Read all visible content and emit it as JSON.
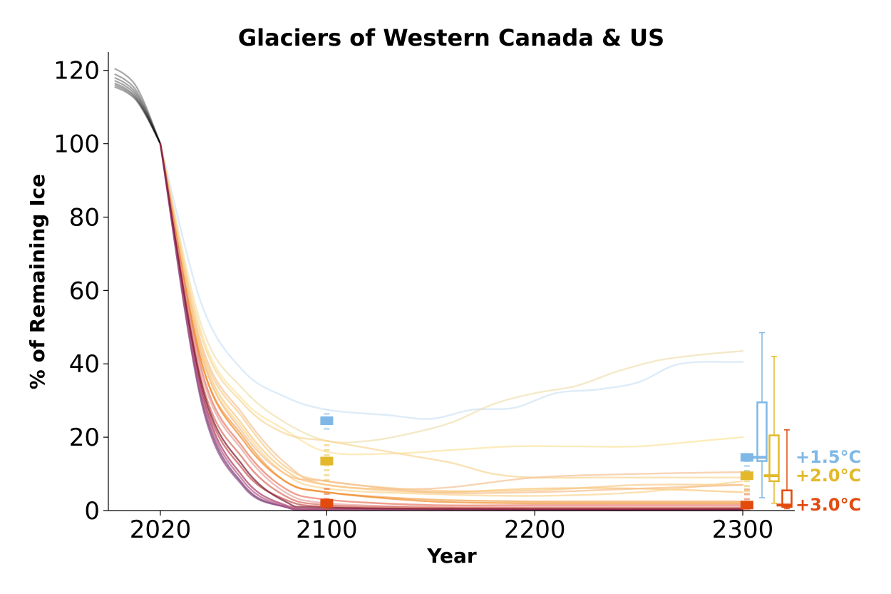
{
  "chart_data": {
    "type": "line",
    "title": "Glaciers of Western Canada & US",
    "xlabel": "Year",
    "ylabel": "% of Remaining Ice",
    "xlim": [
      1995,
      2325
    ],
    "ylim": [
      0,
      125
    ],
    "xticks": [
      2020,
      2100,
      2200,
      2300
    ],
    "yticks": [
      0,
      20,
      40,
      60,
      80,
      100,
      120
    ],
    "grid": false,
    "spines": "left-bottom",
    "historical": {
      "color": "#000000",
      "end_year": 2020,
      "start_values": [
        120.5,
        119.0,
        118.0,
        117.2,
        116.5,
        116.0,
        115.5
      ]
    },
    "scenario_colors": {
      "1.5": "#7fb8e6",
      "2.0": "#e3b92b",
      "3.0": "#e24a0e"
    },
    "series": [
      {
        "values": [
          [
            2020,
            100
          ],
          [
            2040,
            56
          ],
          [
            2060,
            38
          ],
          [
            2080,
            31
          ],
          [
            2100,
            27.5
          ],
          [
            2130,
            26
          ],
          [
            2150,
            25
          ],
          [
            2170,
            27.5
          ],
          [
            2190,
            28
          ],
          [
            2210,
            32
          ],
          [
            2230,
            33
          ],
          [
            2250,
            35
          ],
          [
            2270,
            40
          ],
          [
            2300,
            40.5
          ]
        ],
        "color": "#cfe4f7"
      },
      {
        "values": [
          [
            2020,
            100
          ],
          [
            2040,
            50
          ],
          [
            2060,
            33
          ],
          [
            2080,
            24
          ],
          [
            2100,
            19
          ],
          [
            2120,
            19
          ],
          [
            2140,
            21
          ],
          [
            2160,
            24
          ],
          [
            2180,
            29
          ],
          [
            2200,
            32
          ],
          [
            2220,
            34
          ],
          [
            2240,
            38
          ],
          [
            2260,
            41
          ],
          [
            2280,
            42.5
          ],
          [
            2300,
            43.5
          ]
        ],
        "color": "#efe0b0"
      },
      {
        "values": [
          [
            2020,
            100
          ],
          [
            2040,
            48
          ],
          [
            2060,
            30
          ],
          [
            2080,
            22
          ],
          [
            2100,
            16
          ],
          [
            2130,
            15.5
          ],
          [
            2160,
            16.5
          ],
          [
            2190,
            17.5
          ],
          [
            2220,
            17.5
          ],
          [
            2250,
            17.5
          ],
          [
            2280,
            19
          ],
          [
            2300,
            20
          ]
        ],
        "color": "#fbe4a0"
      },
      {
        "values": [
          [
            2020,
            100
          ],
          [
            2040,
            47
          ],
          [
            2060,
            29
          ],
          [
            2080,
            21
          ],
          [
            2100,
            19
          ],
          [
            2120,
            17
          ],
          [
            2140,
            15
          ],
          [
            2160,
            13
          ],
          [
            2180,
            10
          ],
          [
            2200,
            9
          ],
          [
            2230,
            9
          ],
          [
            2260,
            9
          ],
          [
            2300,
            9
          ]
        ],
        "color": "#f8d595"
      },
      {
        "values": [
          [
            2020,
            100
          ],
          [
            2040,
            45
          ],
          [
            2060,
            26
          ],
          [
            2080,
            13
          ],
          [
            2100,
            7
          ],
          [
            2150,
            6
          ],
          [
            2200,
            9
          ],
          [
            2250,
            10
          ],
          [
            2300,
            10.5
          ]
        ],
        "color": "#f5c294"
      },
      {
        "values": [
          [
            2020,
            100
          ],
          [
            2040,
            44
          ],
          [
            2060,
            25
          ],
          [
            2080,
            12
          ],
          [
            2100,
            8
          ],
          [
            2150,
            5.5
          ],
          [
            2200,
            5.5
          ],
          [
            2250,
            7
          ],
          [
            2300,
            7
          ]
        ],
        "color": "#f6cb8a"
      },
      {
        "values": [
          [
            2020,
            100
          ],
          [
            2040,
            43
          ],
          [
            2060,
            23
          ],
          [
            2080,
            11
          ],
          [
            2100,
            7
          ],
          [
            2150,
            5
          ],
          [
            2200,
            6
          ],
          [
            2250,
            6
          ],
          [
            2300,
            5
          ]
        ],
        "color": "#fac77a"
      },
      {
        "values": [
          [
            2020,
            100
          ],
          [
            2040,
            42
          ],
          [
            2060,
            22
          ],
          [
            2080,
            10
          ],
          [
            2100,
            6
          ],
          [
            2150,
            4.5
          ],
          [
            2200,
            4
          ],
          [
            2250,
            5
          ],
          [
            2300,
            8
          ]
        ],
        "color": "#fad491"
      },
      {
        "values": [
          [
            2020,
            100
          ],
          [
            2040,
            42
          ],
          [
            2060,
            21
          ],
          [
            2080,
            10
          ],
          [
            2100,
            8
          ],
          [
            2150,
            5
          ],
          [
            2200,
            5
          ],
          [
            2250,
            6
          ],
          [
            2300,
            7
          ]
        ],
        "color": "#f7bf8c"
      },
      {
        "values": [
          [
            2020,
            100
          ],
          [
            2040,
            40
          ],
          [
            2060,
            20
          ],
          [
            2080,
            8
          ],
          [
            2100,
            5
          ],
          [
            2150,
            3
          ],
          [
            2200,
            2.5
          ],
          [
            2250,
            2.5
          ],
          [
            2300,
            2.5
          ]
        ],
        "color": "#f0a050"
      },
      {
        "values": [
          [
            2020,
            100
          ],
          [
            2040,
            40
          ],
          [
            2060,
            19
          ],
          [
            2080,
            8
          ],
          [
            2100,
            5
          ],
          [
            2150,
            2.5
          ],
          [
            2200,
            2
          ],
          [
            2250,
            2
          ],
          [
            2300,
            2
          ]
        ],
        "color": "#ef8a2a"
      },
      {
        "values": [
          [
            2020,
            100
          ],
          [
            2040,
            38
          ],
          [
            2060,
            17
          ],
          [
            2080,
            6
          ],
          [
            2100,
            3
          ],
          [
            2150,
            1.5
          ],
          [
            2200,
            1.5
          ],
          [
            2250,
            1.5
          ],
          [
            2300,
            1.5
          ]
        ],
        "color": "#e97560"
      },
      {
        "values": [
          [
            2020,
            100
          ],
          [
            2040,
            37
          ],
          [
            2060,
            16
          ],
          [
            2080,
            5
          ],
          [
            2100,
            2
          ],
          [
            2150,
            1
          ],
          [
            2200,
            1
          ],
          [
            2250,
            1
          ],
          [
            2300,
            1
          ]
        ],
        "color": "#e4a39f"
      },
      {
        "values": [
          [
            2020,
            100
          ],
          [
            2040,
            35
          ],
          [
            2060,
            14
          ],
          [
            2080,
            4
          ],
          [
            2100,
            1.5
          ],
          [
            2150,
            0.8
          ],
          [
            2200,
            0.7
          ],
          [
            2250,
            0.7
          ],
          [
            2300,
            0.7
          ]
        ],
        "color": "#d8695a"
      },
      {
        "values": [
          [
            2020,
            100
          ],
          [
            2040,
            33
          ],
          [
            2060,
            11
          ],
          [
            2080,
            3
          ],
          [
            2100,
            1
          ],
          [
            2150,
            0.5
          ],
          [
            2200,
            0.5
          ],
          [
            2250,
            0.5
          ],
          [
            2300,
            0.5
          ]
        ],
        "color": "#c54f4f"
      },
      {
        "values": [
          [
            2020,
            100
          ],
          [
            2040,
            32
          ],
          [
            2060,
            9
          ],
          [
            2080,
            1.5
          ],
          [
            2100,
            0.4
          ],
          [
            2150,
            0.2
          ],
          [
            2200,
            0.2
          ],
          [
            2250,
            0.2
          ],
          [
            2300,
            0.2
          ]
        ],
        "color": "#a8385f"
      },
      {
        "values": [
          [
            2020,
            100
          ],
          [
            2040,
            30
          ],
          [
            2060,
            7
          ],
          [
            2080,
            1
          ],
          [
            2100,
            0.2
          ],
          [
            2200,
            0.1
          ],
          [
            2300,
            0.1
          ]
        ],
        "color": "#7a3a76"
      },
      {
        "values": [
          [
            2020,
            100
          ],
          [
            2040,
            29
          ],
          [
            2060,
            6.5
          ],
          [
            2080,
            1
          ],
          [
            2100,
            0.2
          ],
          [
            2200,
            0.1
          ],
          [
            2300,
            0.1
          ]
        ],
        "color": "#8a4880"
      },
      {
        "values": [
          [
            2020,
            100
          ],
          [
            2040,
            31
          ],
          [
            2060,
            8
          ],
          [
            2080,
            1.2
          ],
          [
            2100,
            0.3
          ],
          [
            2200,
            0.1
          ],
          [
            2300,
            0.1
          ]
        ],
        "color": "#b75a87"
      },
      {
        "values": [
          [
            2020,
            100
          ],
          [
            2040,
            34
          ],
          [
            2060,
            12
          ],
          [
            2080,
            2.5
          ],
          [
            2100,
            0.8
          ],
          [
            2200,
            0.4
          ],
          [
            2300,
            0.4
          ]
        ],
        "color": "#7a1830"
      }
    ],
    "markers_2100": [
      {
        "scenario": "1.5",
        "median": 24.5,
        "min": 22,
        "max": 27.5,
        "color": "#7fb8e6"
      },
      {
        "scenario": "2.0",
        "median": 13.5,
        "min": 8,
        "max": 19,
        "color": "#e3b92b"
      },
      {
        "scenario": "3.0",
        "median": 2,
        "min": 0.2,
        "max": 7,
        "color": "#e24a0e"
      }
    ],
    "markers_2300": [
      {
        "scenario": "1.5",
        "median": 14.5,
        "min": 10.5,
        "max": 16,
        "color": "#7fb8e6"
      },
      {
        "scenario": "2.0",
        "median": 9.5,
        "min": 5,
        "max": 11,
        "color": "#e3b92b"
      },
      {
        "scenario": "3.0",
        "median": 1.5,
        "min": 0.1,
        "max": 6,
        "color": "#e24a0e"
      }
    ],
    "boxplots": [
      {
        "scenario": "1.5",
        "whisker_low": 3.5,
        "q1": 13.5,
        "median": 14.5,
        "q3": 29.5,
        "whisker_high": 48.5,
        "color": "#7fb8e6"
      },
      {
        "scenario": "2.0",
        "whisker_low": 2,
        "q1": 8,
        "median": 9.5,
        "q3": 20.5,
        "whisker_high": 42,
        "color": "#e3b92b"
      },
      {
        "scenario": "3.0",
        "whisker_low": 0.5,
        "q1": 1.0,
        "median": 1.5,
        "q3": 5.5,
        "whisker_high": 22,
        "color": "#e24a0e"
      }
    ],
    "legend": [
      {
        "label": "+1.5°C",
        "color": "#7fb8e6"
      },
      {
        "label": "+2.0°C",
        "color": "#e3b92b"
      },
      {
        "label": "+3.0°C",
        "color": "#e24a0e"
      }
    ]
  }
}
